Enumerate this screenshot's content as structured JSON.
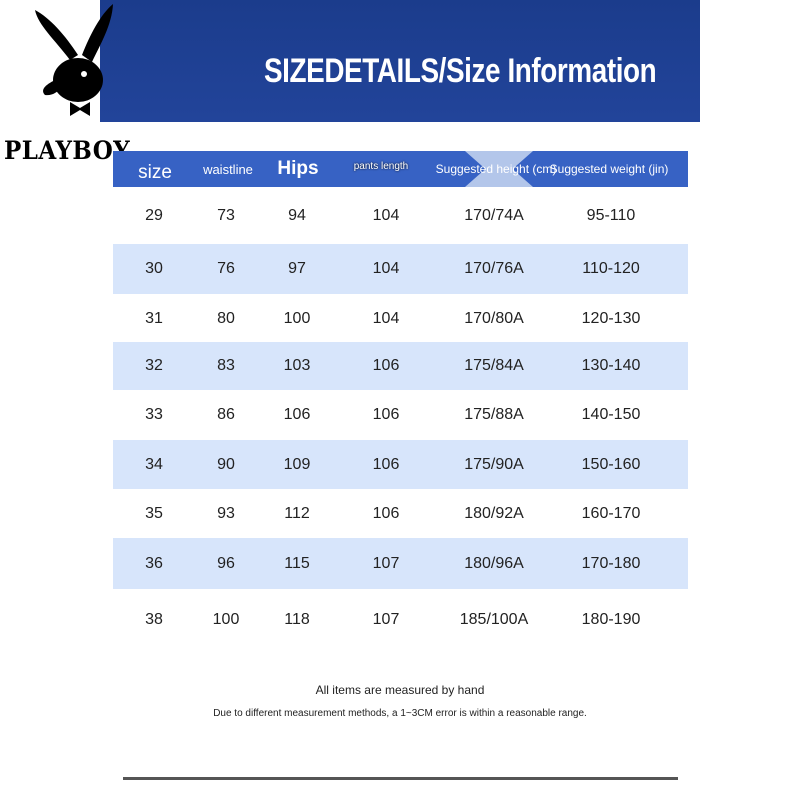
{
  "brand": {
    "logo_text": "PLAYBOY"
  },
  "banner": {
    "title": "SIZEDETAILS/Size Information"
  },
  "table": {
    "headers": [
      "size",
      "waistline",
      "Hips",
      "pants length",
      "Suggested height (cm)",
      "Suggested weight (jin)"
    ],
    "rows": [
      [
        "29",
        "73",
        "94",
        "104",
        "170/74A",
        "95-110"
      ],
      [
        "30",
        "76",
        "97",
        "104",
        "170/76A",
        "110-120"
      ],
      [
        "31",
        "80",
        "100",
        "104",
        "170/80A",
        "120-130"
      ],
      [
        "32",
        "83",
        "103",
        "106",
        "175/84A",
        "130-140"
      ],
      [
        "33",
        "86",
        "106",
        "106",
        "175/88A",
        "140-150"
      ],
      [
        "34",
        "90",
        "109",
        "106",
        "175/90A",
        "150-160"
      ],
      [
        "35",
        "93",
        "112",
        "106",
        "180/92A",
        "160-170"
      ],
      [
        "36",
        "96",
        "115",
        "107",
        "180/96A",
        "170-180"
      ],
      [
        "38",
        "100",
        "118",
        "107",
        "185/100A",
        "180-190"
      ]
    ]
  },
  "notes": {
    "line1": "All items are measured by hand",
    "line2": "Due to different measurement methods, a 1~3CM error is within a reasonable range."
  },
  "colors": {
    "banner": "#1b3c8c",
    "header": "#3762c4",
    "alt_row": "#d7e5fb"
  }
}
